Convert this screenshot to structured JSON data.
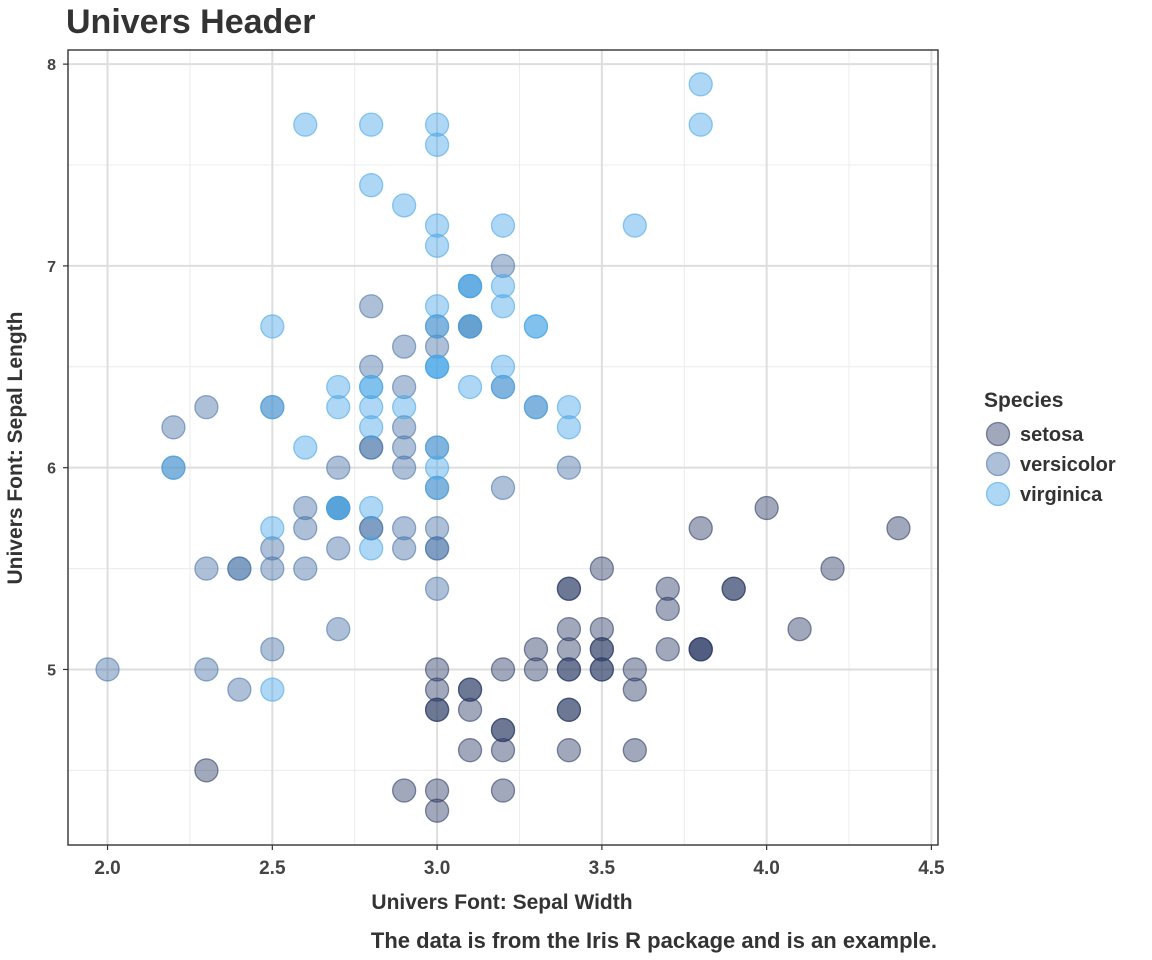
{
  "chart_data": {
    "type": "scatter",
    "title": "Univers Header",
    "xlabel": "Univers Font: Sepal Width",
    "ylabel": "Univers Font: Sepal Length",
    "caption": "The data is from the Iris R package and is an example.",
    "xlim": [
      1.88,
      4.52
    ],
    "ylim": [
      4.13,
      8.07
    ],
    "xticks": [
      "2.0",
      "2.5",
      "3.0",
      "3.5",
      "4.0",
      "4.5"
    ],
    "xtick_values": [
      2.0,
      2.5,
      3.0,
      3.5,
      4.0,
      4.5
    ],
    "yticks": [
      "5",
      "6",
      "7",
      "8"
    ],
    "ytick_values": [
      5,
      6,
      7,
      8
    ],
    "grid": true,
    "legend": {
      "title": "Species",
      "placement": "right"
    },
    "series": [
      {
        "name": "setosa",
        "color": "#2f3d68",
        "points": [
          [
            3.5,
            5.1
          ],
          [
            3.0,
            4.9
          ],
          [
            3.2,
            4.7
          ],
          [
            3.1,
            4.6
          ],
          [
            3.6,
            5.0
          ],
          [
            3.9,
            5.4
          ],
          [
            3.4,
            4.6
          ],
          [
            3.4,
            5.0
          ],
          [
            2.9,
            4.4
          ],
          [
            3.1,
            4.9
          ],
          [
            3.7,
            5.4
          ],
          [
            3.4,
            4.8
          ],
          [
            3.0,
            4.8
          ],
          [
            3.0,
            4.3
          ],
          [
            4.0,
            5.8
          ],
          [
            4.4,
            5.7
          ],
          [
            3.9,
            5.4
          ],
          [
            3.5,
            5.1
          ],
          [
            3.8,
            5.7
          ],
          [
            3.8,
            5.1
          ],
          [
            3.4,
            5.4
          ],
          [
            3.7,
            5.1
          ],
          [
            3.6,
            4.6
          ],
          [
            3.3,
            5.1
          ],
          [
            3.4,
            4.8
          ],
          [
            3.0,
            5.0
          ],
          [
            3.4,
            5.0
          ],
          [
            3.5,
            5.2
          ],
          [
            3.4,
            5.2
          ],
          [
            3.2,
            4.7
          ],
          [
            3.1,
            4.8
          ],
          [
            3.4,
            5.4
          ],
          [
            4.1,
            5.2
          ],
          [
            4.2,
            5.5
          ],
          [
            3.1,
            4.9
          ],
          [
            3.2,
            5.0
          ],
          [
            3.5,
            5.5
          ],
          [
            3.6,
            4.9
          ],
          [
            3.0,
            4.4
          ],
          [
            3.4,
            5.1
          ],
          [
            3.5,
            5.0
          ],
          [
            2.3,
            4.5
          ],
          [
            3.2,
            4.4
          ],
          [
            3.5,
            5.0
          ],
          [
            3.8,
            5.1
          ],
          [
            3.0,
            4.8
          ],
          [
            3.8,
            5.1
          ],
          [
            3.2,
            4.6
          ],
          [
            3.7,
            5.3
          ],
          [
            3.3,
            5.0
          ]
        ]
      },
      {
        "name": "versicolor",
        "color": "#4a74a8",
        "points": [
          [
            3.2,
            7.0
          ],
          [
            3.2,
            6.4
          ],
          [
            3.1,
            6.9
          ],
          [
            2.3,
            5.5
          ],
          [
            2.8,
            6.5
          ],
          [
            2.8,
            5.7
          ],
          [
            3.3,
            6.3
          ],
          [
            2.4,
            4.9
          ],
          [
            2.9,
            6.6
          ],
          [
            2.7,
            5.2
          ],
          [
            2.0,
            5.0
          ],
          [
            3.0,
            5.9
          ],
          [
            2.2,
            6.0
          ],
          [
            2.9,
            6.1
          ],
          [
            2.9,
            5.6
          ],
          [
            3.1,
            6.7
          ],
          [
            3.0,
            5.6
          ],
          [
            2.7,
            5.8
          ],
          [
            2.2,
            6.2
          ],
          [
            2.5,
            5.6
          ],
          [
            3.2,
            5.9
          ],
          [
            2.8,
            6.1
          ],
          [
            2.5,
            6.3
          ],
          [
            2.8,
            6.1
          ],
          [
            2.9,
            6.4
          ],
          [
            3.0,
            6.6
          ],
          [
            2.8,
            6.8
          ],
          [
            3.0,
            6.7
          ],
          [
            2.9,
            6.0
          ],
          [
            2.6,
            5.7
          ],
          [
            2.4,
            5.5
          ],
          [
            2.4,
            5.5
          ],
          [
            2.7,
            5.8
          ],
          [
            2.7,
            6.0
          ],
          [
            3.0,
            5.4
          ],
          [
            3.4,
            6.0
          ],
          [
            3.1,
            6.7
          ],
          [
            2.3,
            6.3
          ],
          [
            3.0,
            5.6
          ],
          [
            2.5,
            5.5
          ],
          [
            2.6,
            5.5
          ],
          [
            3.0,
            6.1
          ],
          [
            2.6,
            5.8
          ],
          [
            2.3,
            5.0
          ],
          [
            2.7,
            5.6
          ],
          [
            3.0,
            5.7
          ],
          [
            2.9,
            5.7
          ],
          [
            2.9,
            6.2
          ],
          [
            2.5,
            5.1
          ],
          [
            2.8,
            5.7
          ]
        ]
      },
      {
        "name": "virginica",
        "color": "#4aa6e6",
        "points": [
          [
            3.3,
            6.3
          ],
          [
            2.7,
            5.8
          ],
          [
            3.0,
            7.1
          ],
          [
            2.9,
            6.3
          ],
          [
            3.0,
            6.5
          ],
          [
            3.0,
            7.6
          ],
          [
            2.5,
            4.9
          ],
          [
            2.9,
            7.3
          ],
          [
            2.5,
            6.7
          ],
          [
            3.6,
            7.2
          ],
          [
            3.2,
            6.5
          ],
          [
            2.7,
            6.4
          ],
          [
            3.0,
            6.8
          ],
          [
            2.5,
            5.7
          ],
          [
            2.8,
            5.8
          ],
          [
            3.2,
            6.4
          ],
          [
            3.0,
            6.5
          ],
          [
            3.8,
            7.7
          ],
          [
            2.6,
            7.7
          ],
          [
            2.2,
            6.0
          ],
          [
            3.2,
            6.9
          ],
          [
            2.8,
            5.6
          ],
          [
            2.8,
            7.7
          ],
          [
            2.7,
            6.3
          ],
          [
            3.3,
            6.7
          ],
          [
            3.2,
            7.2
          ],
          [
            2.8,
            6.2
          ],
          [
            3.0,
            6.1
          ],
          [
            2.8,
            6.4
          ],
          [
            3.0,
            7.2
          ],
          [
            2.8,
            7.4
          ],
          [
            3.8,
            7.9
          ],
          [
            2.8,
            6.4
          ],
          [
            2.8,
            6.3
          ],
          [
            2.6,
            6.1
          ],
          [
            3.0,
            7.7
          ],
          [
            3.4,
            6.3
          ],
          [
            3.1,
            6.4
          ],
          [
            3.0,
            6.0
          ],
          [
            3.1,
            6.9
          ],
          [
            3.1,
            6.7
          ],
          [
            3.1,
            6.9
          ],
          [
            2.7,
            5.8
          ],
          [
            3.2,
            6.8
          ],
          [
            3.3,
            6.7
          ],
          [
            3.0,
            6.7
          ],
          [
            2.5,
            6.3
          ],
          [
            3.0,
            6.5
          ],
          [
            3.4,
            6.2
          ],
          [
            3.0,
            5.9
          ]
        ]
      }
    ]
  }
}
